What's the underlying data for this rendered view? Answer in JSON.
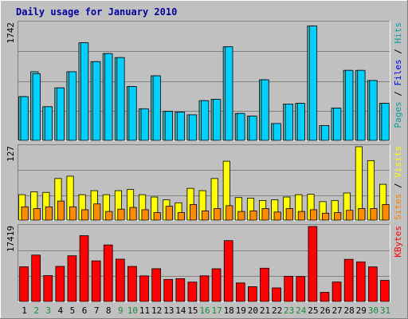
{
  "colors": {
    "background": "#c0c0c0",
    "plot_bg": "#c0c0c0",
    "grid": "#808080",
    "title_text": "#0000a0",
    "day_black": "#000000",
    "day_weekend": "#1a8a3a",
    "pages": "#00a0a0",
    "files": "#0000ff",
    "hits": "#00a0a0",
    "sites": "#ff8000",
    "visits": "#ffff00",
    "kbytes": "#ff0000",
    "bar_pages": "#3fbfbf",
    "bar_files": "#00d0ff",
    "bar_visits": "#ffff00",
    "bar_sites": "#ff8c00",
    "bar_kbytes": "#ff0000"
  },
  "chart_data": {
    "type": "bar",
    "title": "Daily usage for January 2010",
    "categories": [
      "1",
      "2",
      "3",
      "4",
      "5",
      "6",
      "7",
      "8",
      "9",
      "10",
      "11",
      "12",
      "13",
      "14",
      "15",
      "16",
      "17",
      "18",
      "19",
      "20",
      "21",
      "22",
      "23",
      "24",
      "25",
      "26",
      "27",
      "28",
      "29",
      "30",
      "31"
    ],
    "weekend_days": [
      "2",
      "3",
      "9",
      "10",
      "16",
      "17",
      "23",
      "24",
      "30",
      "31"
    ],
    "panels": [
      {
        "name": "hits-files-pages",
        "ymax_label": "1742",
        "legend": [
          {
            "text": "Pages",
            "color_key": "pages"
          },
          {
            "text": " / ",
            "color_key": "day_black"
          },
          {
            "text": "Files",
            "color_key": "files"
          },
          {
            "text": " / ",
            "color_key": "day_black"
          },
          {
            "text": "Hits",
            "color_key": "hits"
          }
        ],
        "ylim": [
          0,
          1742
        ],
        "series": [
          {
            "name": "Hits",
            "color_key": "bar_pages",
            "values": [
              650,
              1020,
              500,
              780,
              1020,
              1450,
              1170,
              1290,
              1230,
              800,
              470,
              960,
              430,
              420,
              380,
              590,
              610,
              1390,
              400,
              360,
              900,
              250,
              540,
              550,
              1700,
              220,
              480,
              1040,
              1040,
              890,
              550
            ]
          },
          {
            "name": "Files",
            "color_key": "bar_files",
            "values": [
              650,
              990,
              500,
              780,
              1020,
              1450,
              1170,
              1290,
              1230,
              800,
              470,
              960,
              430,
              420,
              380,
              590,
              610,
              1390,
              400,
              360,
              900,
              250,
              540,
              550,
              1700,
              220,
              480,
              1040,
              1040,
              890,
              550
            ]
          }
        ]
      },
      {
        "name": "visits-sites",
        "ymax_label": "127",
        "legend": [
          {
            "text": "Sites",
            "color_key": "sites"
          },
          {
            "text": " / ",
            "color_key": "day_black"
          },
          {
            "text": "Visits",
            "color_key": "visits"
          }
        ],
        "ylim": [
          0,
          127
        ],
        "series": [
          {
            "name": "Visits",
            "color_key": "bar_visits",
            "values": [
              44,
              49,
              48,
              72,
              76,
              44,
              51,
              44,
              51,
              53,
              44,
              40,
              35,
              30,
              55,
              51,
              72,
              102,
              39,
              38,
              34,
              35,
              40,
              44,
              45,
              32,
              34,
              47,
              127,
              103,
              62
            ]
          },
          {
            "name": "Sites",
            "color_key": "bar_sites",
            "values": [
              23,
              20,
              23,
              33,
              23,
              18,
              28,
              15,
              19,
              22,
              18,
              13,
              24,
              13,
              27,
              16,
              20,
              25,
              15,
              16,
              20,
              14,
              20,
              15,
              18,
              12,
              13,
              17,
              20,
              20,
              27
            ]
          }
        ]
      },
      {
        "name": "kbytes",
        "ymax_label": "17419",
        "legend": [
          {
            "text": "KBytes",
            "color_key": "kbytes"
          }
        ],
        "ylim": [
          0,
          17419
        ],
        "series": [
          {
            "name": "KBytes",
            "color_key": "bar_kbytes",
            "values": [
              8050,
              10780,
              6000,
              8150,
              10620,
              15280,
              9430,
              13130,
              9830,
              8140,
              5950,
              7610,
              5120,
              5300,
              4500,
              5960,
              7600,
              14140,
              4300,
              3430,
              7730,
              3150,
              5850,
              5800,
              17419,
              2120,
              4520,
              9790,
              9200,
              8030,
              4900
            ]
          }
        ]
      }
    ]
  }
}
